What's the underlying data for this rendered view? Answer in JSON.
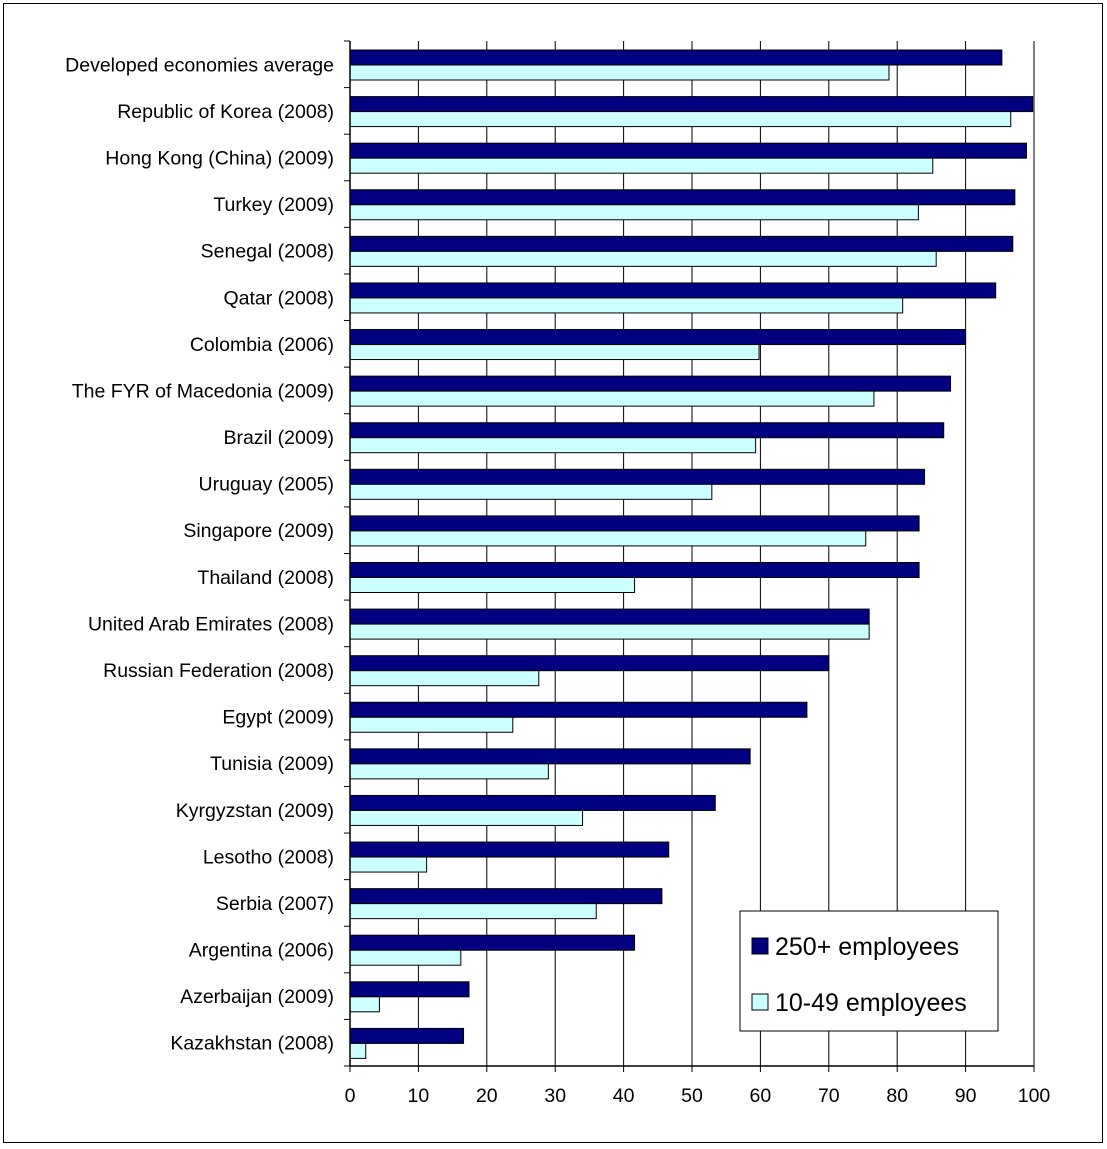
{
  "chart_data": {
    "type": "bar",
    "orientation": "horizontal",
    "title": "",
    "xlabel": "",
    "ylabel": "",
    "xlim": [
      0,
      100
    ],
    "x_ticks": [
      0,
      10,
      20,
      30,
      40,
      50,
      60,
      70,
      80,
      90,
      100
    ],
    "grid": "vertical",
    "legend_position": "bottom-right",
    "categories": [
      "Developed economies average",
      "Republic of Korea (2008)",
      "Hong Kong (China) (2009)",
      "Turkey (2009)",
      "Senegal (2008)",
      "Qatar (2008)",
      "Colombia (2006)",
      "The FYR of Macedonia (2009)",
      "Brazil (2009)",
      "Uruguay (2005)",
      "Singapore (2009)",
      "Thailand (2008)",
      "United Arab Emirates (2008)",
      "Russian Federation (2008)",
      "Egypt (2009)",
      "Tunisia (2009)",
      "Kyrgyzstan (2009)",
      "Lesotho (2008)",
      "Serbia (2007)",
      "Argentina (2006)",
      "Azerbaijan (2009)",
      "Kazakhstan (2008)"
    ],
    "series": [
      {
        "name": "250+ employees",
        "color": "#000080",
        "values": [
          95.3,
          99.8,
          98.9,
          97.2,
          96.9,
          94.4,
          90.0,
          87.8,
          86.8,
          84.0,
          83.2,
          83.2,
          75.9,
          70.0,
          66.8,
          58.5,
          53.4,
          46.6,
          45.6,
          41.6,
          17.4,
          16.6
        ]
      },
      {
        "name": "10-49 employees",
        "color": "#ccffff",
        "values": [
          78.8,
          96.6,
          85.2,
          83.1,
          85.7,
          80.8,
          59.8,
          76.6,
          59.3,
          52.9,
          75.4,
          41.6,
          75.9,
          27.6,
          23.8,
          29.0,
          34.0,
          11.2,
          36.0,
          16.2,
          4.3,
          2.3
        ]
      }
    ]
  }
}
